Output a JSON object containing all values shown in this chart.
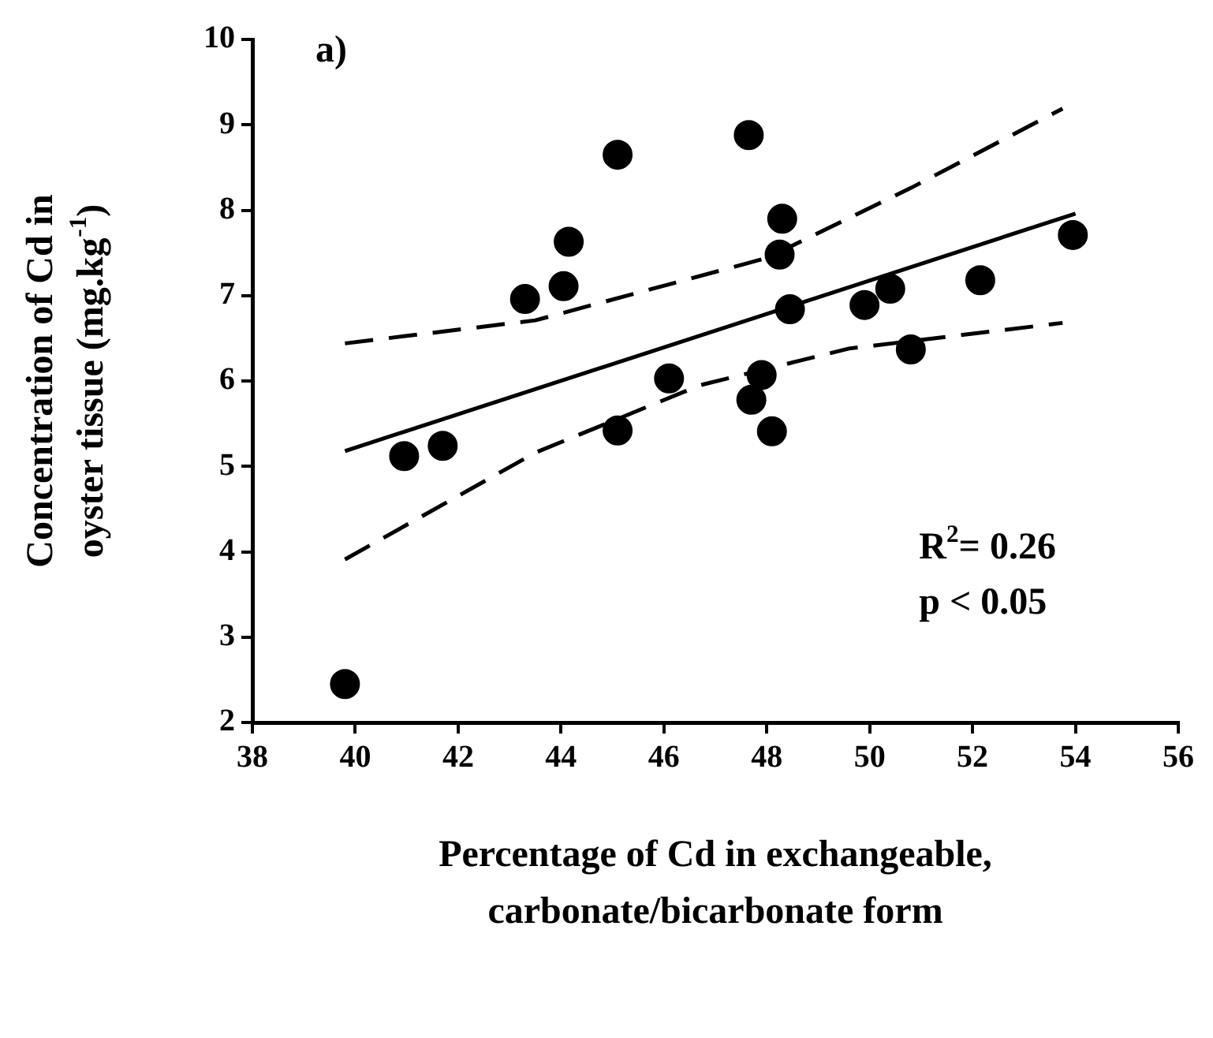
{
  "chart_data": {
    "type": "scatter",
    "title": "a)",
    "xlabel": "Percentage of Cd in exchangeable,\ncarbonate/bicarbonate form",
    "ylabel": "Concentration of Cd in\noyster tissue (mg.kg$^{-1}$)",
    "xlim": [
      38,
      56
    ],
    "xticks": [
      38,
      40,
      42,
      44,
      46,
      48,
      50,
      52,
      54,
      56
    ],
    "ylim": [
      2,
      10
    ],
    "yticks": [
      2,
      3,
      4,
      5,
      6,
      7,
      8,
      9,
      10
    ],
    "annotations": [
      "R$^{2}$= 0.26",
      "p < 0.05"
    ],
    "series": [
      {
        "marker": "circle",
        "color": "#000000",
        "x": [
          39.8,
          40.95,
          41.7,
          43.3,
          44.05,
          44.15,
          45.1,
          45.1,
          46.1,
          47.65,
          47.7,
          47.9,
          48.1,
          48.3,
          48.25,
          48.45,
          49.9,
          50.4,
          50.8,
          52.15,
          53.95
        ],
        "values": [
          2.45,
          5.12,
          5.24,
          6.96,
          7.11,
          7.63,
          8.65,
          5.42,
          6.03,
          8.88,
          5.78,
          6.07,
          5.41,
          7.9,
          7.48,
          6.84,
          6.89,
          7.08,
          6.37,
          7.18,
          7.71
        ]
      },
      {
        "type": "line",
        "color": "#000000",
        "line_style": "solid",
        "x": [
          39.8,
          54
        ],
        "values": [
          5.18,
          7.96
        ]
      },
      {
        "type": "line",
        "color": "#000000",
        "line_style": "dashed",
        "x": [
          39.8,
          43.5,
          48,
          50.8,
          53.75
        ],
        "values": [
          6.44,
          6.71,
          7.44,
          8.26,
          9.19
        ]
      },
      {
        "type": "line",
        "color": "#000000",
        "line_style": "dashed",
        "x": [
          39.8,
          43.5,
          46.7,
          49.6,
          53.75
        ],
        "values": [
          3.91,
          5.16,
          5.95,
          6.38,
          6.68
        ]
      }
    ]
  }
}
